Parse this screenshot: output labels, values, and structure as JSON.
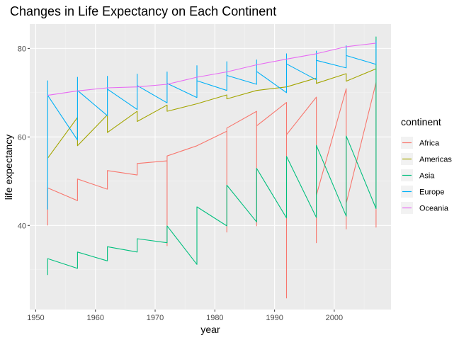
{
  "chart_data": {
    "type": "line",
    "title": "Changes in Life Expectancy on Each Continent",
    "xlabel": "year",
    "ylabel": "life expectancy",
    "xlim": [
      1949,
      2009.5
    ],
    "ylim": [
      21,
      85.5
    ],
    "xticks": [
      1950,
      1960,
      1970,
      1980,
      1990,
      2000
    ],
    "yticks": [
      40,
      60,
      80
    ],
    "grid": true,
    "legend": {
      "title": "continent",
      "position": "right"
    },
    "x": [
      1952,
      1957,
      1962,
      1967,
      1972,
      1977,
      1982,
      1987,
      1992,
      1997,
      2002,
      2007
    ],
    "series": [
      {
        "name": "Africa",
        "color": "#F8766D",
        "points": [
          [
            1952,
            40.0
          ],
          [
            1952,
            48.5
          ],
          [
            1957,
            45.6
          ],
          [
            1957,
            50.5
          ],
          [
            1962,
            48.2
          ],
          [
            1962,
            52.4
          ],
          [
            1967,
            51.4
          ],
          [
            1967,
            54.0
          ],
          [
            1972,
            54.6
          ],
          [
            1972,
            35.4
          ],
          [
            1972,
            55.7
          ],
          [
            1977,
            58.0
          ],
          [
            1982,
            61.3
          ],
          [
            1982,
            38.5
          ],
          [
            1982,
            62.0
          ],
          [
            1987,
            65.8
          ],
          [
            1987,
            39.9
          ],
          [
            1987,
            62.5
          ],
          [
            1992,
            67.8
          ],
          [
            1992,
            23.6
          ],
          [
            1992,
            60.5
          ],
          [
            1997,
            69.0
          ],
          [
            1997,
            36.1
          ],
          [
            1997,
            46.8
          ],
          [
            2002,
            70.9
          ],
          [
            2002,
            39.2
          ],
          [
            2002,
            45.0
          ],
          [
            2007,
            72.3
          ],
          [
            2007,
            39.6
          ],
          [
            2007,
            43.5
          ]
        ]
      },
      {
        "name": "Americas",
        "color": "#A3A500",
        "points": [
          [
            1952,
            55.2
          ],
          [
            1957,
            64.4
          ],
          [
            1957,
            58.0
          ],
          [
            1962,
            65.0
          ],
          [
            1962,
            61.0
          ],
          [
            1967,
            65.8
          ],
          [
            1967,
            63.5
          ],
          [
            1972,
            67.2
          ],
          [
            1972,
            65.8
          ],
          [
            1977,
            67.5
          ],
          [
            1982,
            69.5
          ],
          [
            1982,
            68.6
          ],
          [
            1987,
            70.5
          ],
          [
            1992,
            71.3
          ],
          [
            1997,
            73.3
          ],
          [
            1997,
            72.1
          ],
          [
            2002,
            74.3
          ],
          [
            2002,
            72.6
          ],
          [
            2007,
            75.4
          ]
        ]
      },
      {
        "name": "Asia",
        "color": "#00BF7D",
        "points": [
          [
            1952,
            28.8
          ],
          [
            1952,
            32.5
          ],
          [
            1957,
            30.3
          ],
          [
            1957,
            34.0
          ],
          [
            1962,
            32.0
          ],
          [
            1962,
            35.2
          ],
          [
            1967,
            34.0
          ],
          [
            1967,
            37.0
          ],
          [
            1972,
            36.1
          ],
          [
            1972,
            39.9
          ],
          [
            1977,
            31.2
          ],
          [
            1977,
            44.2
          ],
          [
            1982,
            39.9
          ],
          [
            1982,
            49.1
          ],
          [
            1987,
            40.8
          ],
          [
            1987,
            52.9
          ],
          [
            1992,
            41.7
          ],
          [
            1992,
            55.6
          ],
          [
            1997,
            41.8
          ],
          [
            1997,
            58.1
          ],
          [
            2002,
            42.1
          ],
          [
            2002,
            60.2
          ],
          [
            2007,
            43.8
          ],
          [
            2007,
            82.6
          ],
          [
            2007,
            43.8
          ]
        ]
      },
      {
        "name": "Europe",
        "color": "#00B0F6",
        "points": [
          [
            1952,
            43.6
          ],
          [
            1952,
            72.7
          ],
          [
            1952,
            69.4
          ],
          [
            1957,
            59.3
          ],
          [
            1957,
            73.5
          ],
          [
            1957,
            70.5
          ],
          [
            1962,
            64.8
          ],
          [
            1962,
            73.7
          ],
          [
            1962,
            70.8
          ],
          [
            1967,
            66.2
          ],
          [
            1967,
            74.2
          ],
          [
            1967,
            71.6
          ],
          [
            1972,
            67.7
          ],
          [
            1972,
            74.7
          ],
          [
            1972,
            72.1
          ],
          [
            1977,
            68.9
          ],
          [
            1977,
            76.1
          ],
          [
            1977,
            72.7
          ],
          [
            1982,
            70.5
          ],
          [
            1982,
            77.0
          ],
          [
            1982,
            73.9
          ],
          [
            1987,
            71.9
          ],
          [
            1987,
            77.4
          ],
          [
            1987,
            74.8
          ],
          [
            1992,
            70.0
          ],
          [
            1992,
            78.8
          ],
          [
            1992,
            76.5
          ],
          [
            1997,
            72.9
          ],
          [
            1997,
            79.4
          ],
          [
            1997,
            77.3
          ],
          [
            2002,
            75.6
          ],
          [
            2002,
            80.6
          ],
          [
            2002,
            78.4
          ],
          [
            2007,
            76.4
          ],
          [
            2007,
            81.8
          ]
        ]
      },
      {
        "name": "Oceania",
        "color": "#E76BF3",
        "points": [
          [
            1952,
            69.4
          ],
          [
            1957,
            70.4
          ],
          [
            1962,
            71.1
          ],
          [
            1967,
            71.3
          ],
          [
            1972,
            71.9
          ],
          [
            1977,
            73.5
          ],
          [
            1982,
            74.7
          ],
          [
            1987,
            76.3
          ],
          [
            1992,
            77.6
          ],
          [
            1997,
            78.8
          ],
          [
            2002,
            80.4
          ],
          [
            2007,
            81.2
          ]
        ]
      }
    ]
  }
}
